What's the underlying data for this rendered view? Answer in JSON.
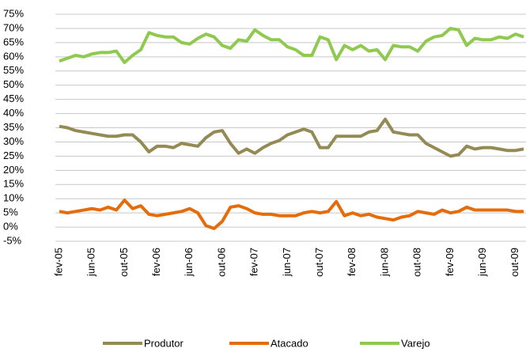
{
  "chart_data": {
    "type": "line",
    "categories": [
      "fev-05",
      null,
      null,
      null,
      "jun-05",
      null,
      null,
      null,
      "out-05",
      null,
      null,
      null,
      "fev-06",
      null,
      null,
      null,
      "jun-06",
      null,
      null,
      null,
      "out-06",
      null,
      null,
      null,
      "fev-07",
      null,
      null,
      null,
      "jun-07",
      null,
      null,
      null,
      "out-07",
      null,
      null,
      null,
      "fev-08",
      null,
      null,
      null,
      "jun-08",
      null,
      null,
      null,
      "out-08",
      null,
      null,
      null,
      "fev-09",
      null,
      null,
      null,
      "jun-09",
      null,
      null,
      null,
      "out-09",
      null
    ],
    "series": [
      {
        "name": "Produtor",
        "color": "#948a54",
        "values": [
          35.5,
          35,
          34,
          33.5,
          33,
          32.5,
          32,
          32,
          32.5,
          32.5,
          30,
          26.5,
          28.5,
          28.5,
          28,
          29.5,
          29,
          28.5,
          31.5,
          33.5,
          34,
          29.5,
          26,
          27.5,
          26,
          28,
          29.5,
          30.5,
          32.5,
          33.5,
          34.5,
          33.5,
          28,
          28,
          32,
          32,
          32,
          32,
          33.5,
          34,
          38,
          33.5,
          33,
          32.5,
          32.5,
          29.5,
          28,
          26.5,
          25,
          25.5,
          28.5,
          27.5,
          28,
          28,
          27.5,
          27,
          27,
          27.5
        ]
      },
      {
        "name": "Atacado",
        "color": "#e46c0a",
        "values": [
          5.5,
          5,
          5.5,
          6,
          6.5,
          6,
          7,
          6,
          9.5,
          6.5,
          7.5,
          4.5,
          4,
          4.5,
          5,
          5.5,
          6.5,
          5,
          0.5,
          -0.5,
          2,
          7,
          7.5,
          6.5,
          5,
          4.5,
          4.5,
          4,
          4,
          4,
          5,
          5.5,
          5,
          5.5,
          9,
          4,
          5,
          4,
          4.5,
          3.5,
          3,
          2.5,
          3.5,
          4,
          5.5,
          5,
          4.5,
          6,
          5,
          5.5,
          7,
          6,
          6,
          6,
          6,
          6,
          5.5,
          5.5
        ]
      },
      {
        "name": "Varejo",
        "color": "#8fc94f",
        "values": [
          58.5,
          59.5,
          60.5,
          60,
          61,
          61.5,
          61.5,
          62,
          58,
          60.5,
          62.5,
          68.5,
          67.5,
          67,
          67,
          65,
          64.5,
          66.5,
          68,
          67,
          64,
          63,
          66,
          65.5,
          69.5,
          67.5,
          66,
          66,
          63.5,
          62.5,
          60.5,
          60.5,
          67,
          66,
          59,
          64,
          62.5,
          64,
          62,
          62.5,
          59,
          64,
          63.5,
          63.5,
          62,
          65.5,
          67,
          67.5,
          70,
          69.5,
          64,
          66.5,
          66,
          66,
          67,
          66.5,
          68,
          67
        ]
      }
    ],
    "ylim": [
      -5,
      75
    ],
    "yticks": [
      {
        "value": -5,
        "label": "-5%"
      },
      {
        "value": 0,
        "label": "0%"
      },
      {
        "value": 5,
        "label": "5%"
      },
      {
        "value": 10,
        "label": "10%"
      },
      {
        "value": 15,
        "label": "15%"
      },
      {
        "value": 20,
        "label": "20%"
      },
      {
        "value": 25,
        "label": "25%"
      },
      {
        "value": 30,
        "label": "30%"
      },
      {
        "value": 35,
        "label": "35%"
      },
      {
        "value": 40,
        "label": "40%"
      },
      {
        "value": 45,
        "label": "45%"
      },
      {
        "value": 50,
        "label": "50%"
      },
      {
        "value": 55,
        "label": "55%"
      },
      {
        "value": 60,
        "label": "60%"
      },
      {
        "value": 65,
        "label": "65%"
      },
      {
        "value": 70,
        "label": "70%"
      },
      {
        "value": 75,
        "label": "75%"
      }
    ],
    "grid": true,
    "legend": "bottom"
  }
}
